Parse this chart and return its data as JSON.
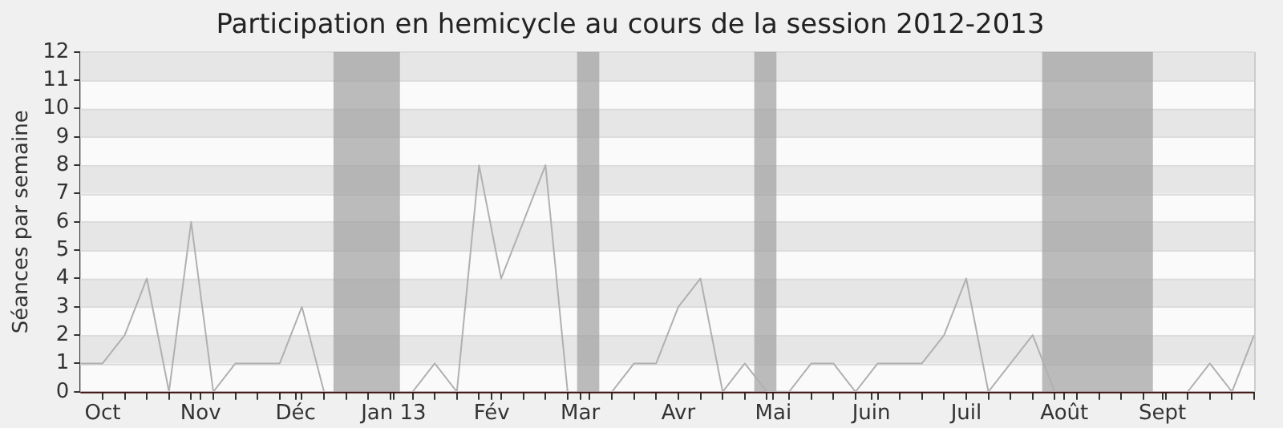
{
  "chart_data": {
    "type": "line",
    "title": "Participation en hemicycle au cours de la session 2012-2013",
    "ylabel": "Séances par semaine",
    "x": [
      "2012-09-24",
      "2012-10-01",
      "2012-10-08",
      "2012-10-15",
      "2012-10-22",
      "2012-10-29",
      "2012-11-05",
      "2012-11-12",
      "2012-11-19",
      "2012-11-26",
      "2012-12-03",
      "2012-12-10",
      "2012-12-17",
      "2012-12-24",
      "2012-12-31",
      "2013-01-07",
      "2013-01-14",
      "2013-01-21",
      "2013-01-28",
      "2013-02-04",
      "2013-02-11",
      "2013-02-18",
      "2013-02-25",
      "2013-03-04",
      "2013-03-11",
      "2013-03-18",
      "2013-03-25",
      "2013-04-01",
      "2013-04-08",
      "2013-04-15",
      "2013-04-22",
      "2013-04-29",
      "2013-05-06",
      "2013-05-13",
      "2013-05-20",
      "2013-05-27",
      "2013-06-03",
      "2013-06-10",
      "2013-06-17",
      "2013-06-24",
      "2013-07-01",
      "2013-07-08",
      "2013-07-15",
      "2013-07-22",
      "2013-07-29",
      "2013-08-05",
      "2013-08-12",
      "2013-08-19",
      "2013-08-26",
      "2013-09-02",
      "2013-09-09",
      "2013-09-16",
      "2013-09-23",
      "2013-09-30"
    ],
    "series": [
      {
        "color": "#b0b0b0",
        "values": [
          1,
          1,
          2,
          4,
          0,
          6,
          0,
          1,
          1,
          1,
          3,
          0,
          null,
          null,
          null,
          0,
          1,
          0,
          8,
          4,
          6,
          8,
          0,
          null,
          0,
          1,
          1,
          3,
          4,
          0,
          1,
          0,
          0,
          1,
          1,
          0,
          1,
          1,
          1,
          2,
          4,
          0,
          1,
          2,
          0,
          null,
          null,
          null,
          null,
          null,
          0,
          1,
          0,
          2
        ]
      }
    ],
    "xlim": [
      "2012-09-24",
      "2013-09-30"
    ],
    "xticks": [
      {
        "value": "2012-10-01",
        "label": "Oct"
      },
      {
        "value": "2012-10-08",
        "label": null
      },
      {
        "value": "2012-10-15",
        "label": null
      },
      {
        "value": "2012-10-22",
        "label": null
      },
      {
        "value": "2012-10-29",
        "label": null
      },
      {
        "value": "2012-11-01",
        "label": "Nov"
      },
      {
        "value": "2012-11-05",
        "label": null
      },
      {
        "value": "2012-11-12",
        "label": null
      },
      {
        "value": "2012-11-19",
        "label": null
      },
      {
        "value": "2012-11-26",
        "label": null
      },
      {
        "value": "2012-12-01",
        "label": "Déc"
      },
      {
        "value": "2012-12-03",
        "label": null
      },
      {
        "value": "2012-12-10",
        "label": null
      },
      {
        "value": "2012-12-17",
        "label": null
      },
      {
        "value": "2012-12-24",
        "label": null
      },
      {
        "value": "2012-12-31",
        "label": null
      },
      {
        "value": "2013-01-01",
        "label": "Jan 13"
      },
      {
        "value": "2013-01-07",
        "label": null
      },
      {
        "value": "2013-01-14",
        "label": null
      },
      {
        "value": "2013-01-21",
        "label": null
      },
      {
        "value": "2013-01-28",
        "label": null
      },
      {
        "value": "2013-02-01",
        "label": "Fév"
      },
      {
        "value": "2013-02-04",
        "label": null
      },
      {
        "value": "2013-02-11",
        "label": null
      },
      {
        "value": "2013-02-18",
        "label": null
      },
      {
        "value": "2013-02-25",
        "label": null
      },
      {
        "value": "2013-03-01",
        "label": "Mar"
      },
      {
        "value": "2013-03-04",
        "label": null
      },
      {
        "value": "2013-03-11",
        "label": null
      },
      {
        "value": "2013-03-18",
        "label": null
      },
      {
        "value": "2013-03-25",
        "label": null
      },
      {
        "value": "2013-04-01",
        "label": "Avr"
      },
      {
        "value": "2013-04-08",
        "label": null
      },
      {
        "value": "2013-04-15",
        "label": null
      },
      {
        "value": "2013-04-22",
        "label": null
      },
      {
        "value": "2013-04-29",
        "label": null
      },
      {
        "value": "2013-05-01",
        "label": "Mai"
      },
      {
        "value": "2013-05-06",
        "label": null
      },
      {
        "value": "2013-05-13",
        "label": null
      },
      {
        "value": "2013-05-20",
        "label": null
      },
      {
        "value": "2013-05-27",
        "label": null
      },
      {
        "value": "2013-06-01",
        "label": "Juin"
      },
      {
        "value": "2013-06-03",
        "label": null
      },
      {
        "value": "2013-06-10",
        "label": null
      },
      {
        "value": "2013-06-17",
        "label": null
      },
      {
        "value": "2013-06-24",
        "label": null
      },
      {
        "value": "2013-07-01",
        "label": "Juil"
      },
      {
        "value": "2013-07-08",
        "label": null
      },
      {
        "value": "2013-07-15",
        "label": null
      },
      {
        "value": "2013-07-22",
        "label": null
      },
      {
        "value": "2013-07-29",
        "label": null
      },
      {
        "value": "2013-08-01",
        "label": "Août"
      },
      {
        "value": "2013-08-05",
        "label": null
      },
      {
        "value": "2013-08-12",
        "label": null
      },
      {
        "value": "2013-08-19",
        "label": null
      },
      {
        "value": "2013-08-26",
        "label": null
      },
      {
        "value": "2013-09-01",
        "label": "Sept"
      },
      {
        "value": "2013-09-02",
        "label": null
      },
      {
        "value": "2013-09-09",
        "label": null
      },
      {
        "value": "2013-09-16",
        "label": null
      },
      {
        "value": "2013-09-23",
        "label": null
      },
      {
        "value": "2013-09-30",
        "label": null
      }
    ],
    "ylim": [
      0,
      12
    ],
    "yticks": [
      0,
      1,
      2,
      3,
      4,
      5,
      6,
      7,
      8,
      9,
      10,
      11,
      12
    ],
    "bands": [
      {
        "axis": "x",
        "from": "2012-12-13",
        "to": "2013-01-03",
        "color": "#a0a0a0"
      },
      {
        "axis": "x",
        "from": "2013-02-28",
        "to": "2013-03-07",
        "color": "#a0a0a0"
      },
      {
        "axis": "x",
        "from": "2013-04-25",
        "to": "2013-05-02",
        "color": "#a0a0a0"
      },
      {
        "axis": "x",
        "from": "2013-07-25",
        "to": "2013-08-29",
        "color": "#a0a0a0"
      }
    ],
    "grid": "y",
    "legend": false,
    "marker": "none",
    "line_style": "solid"
  }
}
